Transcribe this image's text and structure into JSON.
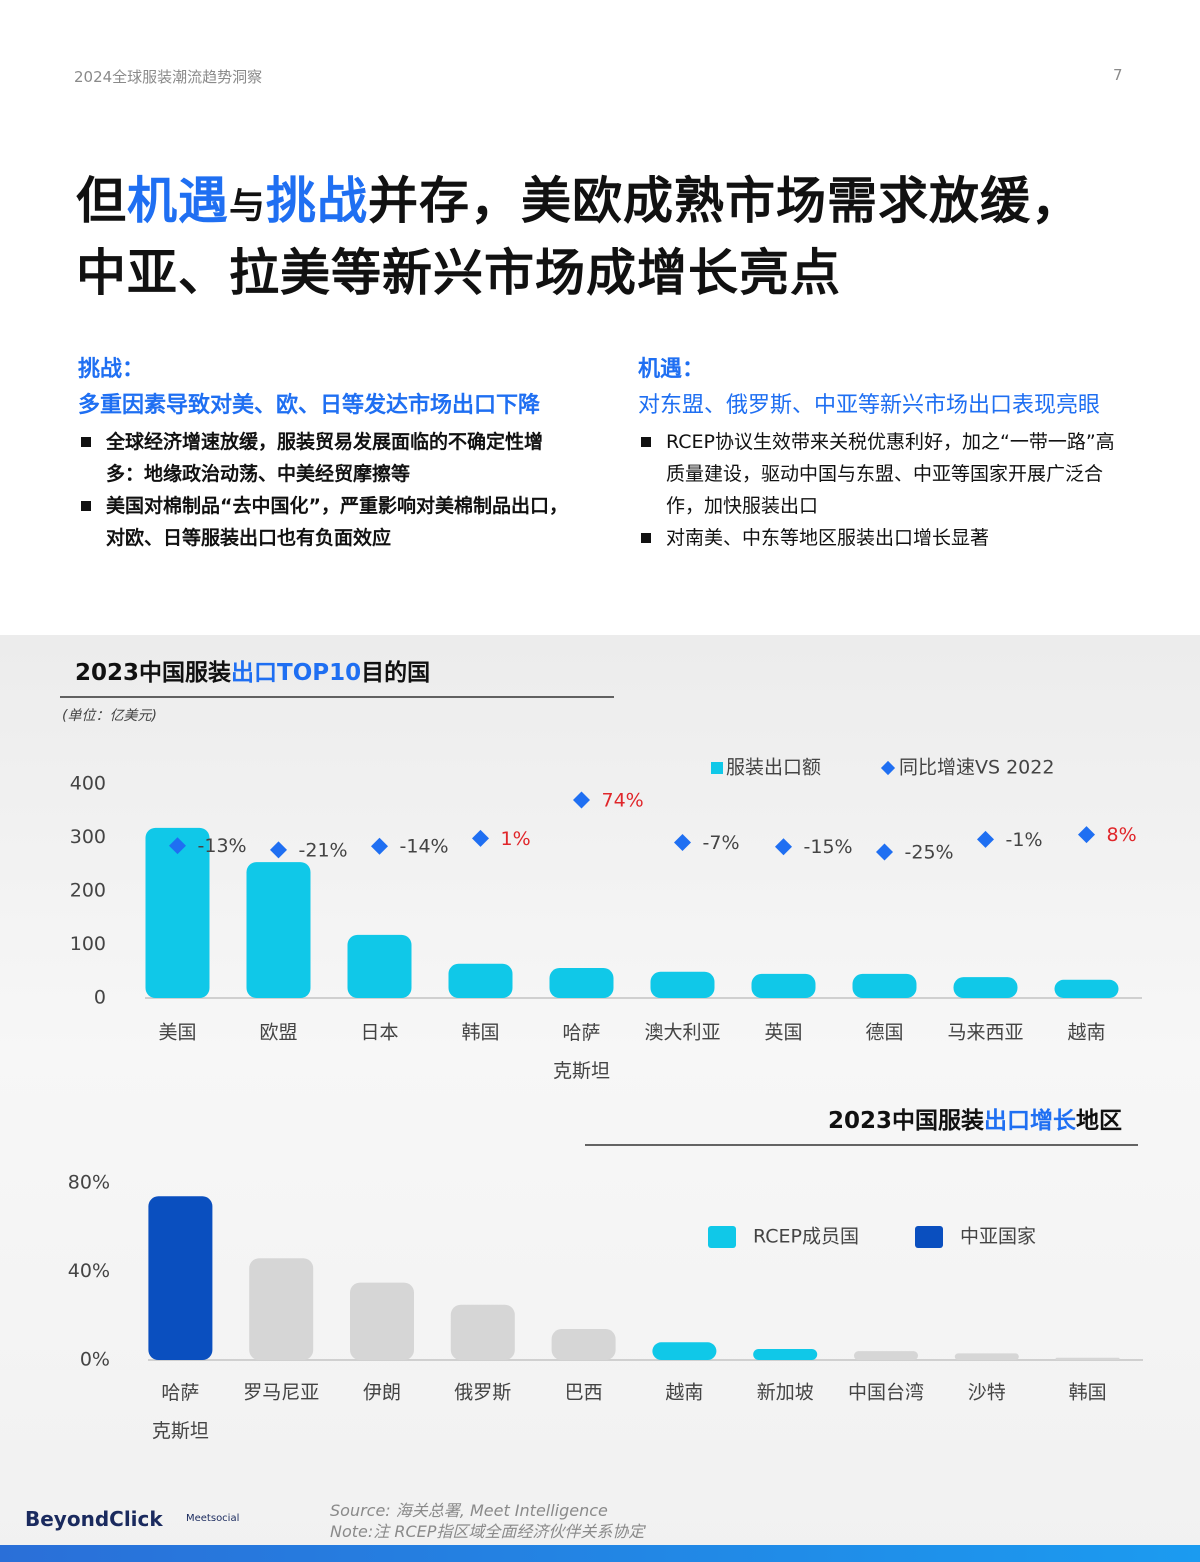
{
  "header": {
    "doc_title": "2024全球服装潮流趋势洞察",
    "page": "7"
  },
  "title": {
    "line1": [
      "但",
      "机遇",
      "与",
      "挑战",
      "并存，美欧成熟市场需求放缓，"
    ],
    "line2": "中亚、拉美等新兴市场成增长亮点",
    "highlight": [
      1,
      3
    ],
    "small": [
      2
    ]
  },
  "challenge": {
    "label": "挑战：",
    "heading": "多重因素导致对美、欧、日等发达市场出口下降",
    "bullets": [
      "全球经济增速放缓，服装贸易发展面临的不确定性增多：地缘政治动荡、中美经贸摩擦等",
      "美国对棉制品“去中国化”，严重影响对美棉制品出口，对欧、日等服装出口也有负面效应"
    ]
  },
  "opportunity": {
    "label": "机遇：",
    "heading": "对东盟、俄罗斯、中亚等新兴市场出口表现亮眼",
    "bullets": [
      "RCEP协议生效带来关税优惠利好，加之“一带一路”高质量建设，驱动中国与东盟、中亚等国家开展广泛合作，加快服装出口",
      "对南美、中东等地区服装出口增长显著"
    ]
  },
  "chart_data": [
    {
      "type": "bar",
      "title": [
        "2023中国服装",
        "出口TOP10",
        "目的国"
      ],
      "title_highlight": [
        1
      ],
      "unit": "(单位：亿美元)",
      "categories": [
        "美国",
        "欧盟",
        "日本",
        "韩国",
        "哈萨克斯坦",
        "澳大利亚",
        "英国",
        "德国",
        "马来西亚",
        "越南"
      ],
      "series": [
        {
          "name": "服装出口额",
          "color": "#10c8e8",
          "values": [
            318,
            254,
            118,
            64,
            56,
            49,
            45,
            45,
            39,
            34
          ]
        },
        {
          "name": "同比增速VS 2022",
          "type": "scatter",
          "axis": "y2",
          "color": "#1f6ff2",
          "values": [
            -13,
            -21,
            -14,
            1,
            74,
            -7,
            -15,
            -25,
            -1,
            8
          ],
          "value_labels": [
            "-13%",
            "-21%",
            "-14%",
            "1%",
            "74%",
            "-7%",
            "-15%",
            "-25%",
            "-1%",
            "8%"
          ],
          "positive_label_color": "#e0262a",
          "negative_label_color": "#444444"
        }
      ],
      "ylim": [
        0,
        400
      ],
      "yticks": [
        0,
        100,
        200,
        300,
        400
      ]
    },
    {
      "type": "bar",
      "title": [
        "2023中国服装",
        "出口增长",
        "地区"
      ],
      "title_highlight": [
        1
      ],
      "categories": [
        "哈萨克斯坦",
        "罗马尼亚",
        "伊朗",
        "俄罗斯",
        "巴西",
        "越南",
        "新加坡",
        "中国台湾",
        "沙特",
        "韩国"
      ],
      "values": [
        74,
        46,
        35,
        25,
        14,
        8,
        5,
        4,
        3,
        1
      ],
      "colors": [
        "#0a4fbf",
        "#d6d6d6",
        "#d6d6d6",
        "#d6d6d6",
        "#d6d6d6",
        "#10c8e8",
        "#10c8e8",
        "#d6d6d6",
        "#d6d6d6",
        "#d6d6d6"
      ],
      "legend": [
        {
          "name": "RCEP成员国",
          "color": "#10c8e8"
        },
        {
          "name": "中亚国家",
          "color": "#0a4fbf"
        }
      ],
      "ylim": [
        0,
        80
      ],
      "yticks": [
        {
          "value": 0,
          "label": "0%"
        },
        {
          "value": 40,
          "label": "40%"
        },
        {
          "value": 80,
          "label": "80%"
        }
      ]
    }
  ],
  "footer": {
    "source": "Source: 海关总署, Meet Intelligence",
    "note": "Note:注 RCEP指区域全面经济伙伴关系协定",
    "logo": "BeyondClick",
    "logo_sub": "Meetsocial"
  }
}
